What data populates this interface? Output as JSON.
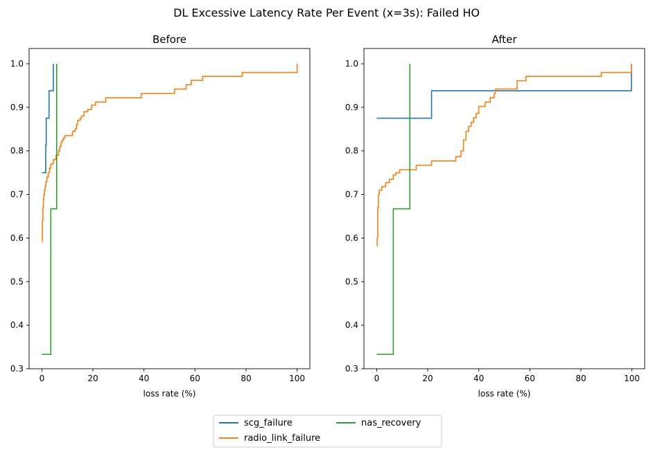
{
  "figure": {
    "suptitle": "DL Excessive Latency Rate Per Event (x=3s): Failed HO",
    "legend": {
      "placement": "bottom-center",
      "columns": 2,
      "entries": [
        {
          "name": "scg_failure",
          "color": "#1f77b4"
        },
        {
          "name": "radio_link_failure",
          "color": "#ff7f0e"
        },
        {
          "name": "nas_recovery",
          "color": "#2ca02c"
        }
      ]
    }
  },
  "chart_data": [
    {
      "type": "line",
      "step": true,
      "title": "Before",
      "xlabel": "loss rate (%)",
      "ylabel": "",
      "xlim": [
        -5,
        105
      ],
      "ylim": [
        0.3,
        1.035
      ],
      "xticks": [
        0,
        20,
        40,
        60,
        80,
        100
      ],
      "xtick_labels": [
        "0",
        "20",
        "40",
        "60",
        "80",
        "100"
      ],
      "yticks": [
        0.3,
        0.4,
        0.5,
        0.6,
        0.7,
        0.8,
        0.9,
        1.0
      ],
      "ytick_labels": [
        "0.3",
        "0.4",
        "0.5",
        "0.6",
        "0.7",
        "0.8",
        "0.9",
        "1.0"
      ],
      "grid": false,
      "series": [
        {
          "name": "scg_failure",
          "color": "#1f77b4",
          "x": [
            0,
            1.5,
            1.5,
            1.7,
            1.7,
            2.8,
            2.8,
            4.5,
            4.5
          ],
          "y": [
            0.75,
            0.75,
            0.813,
            0.813,
            0.875,
            0.875,
            0.938,
            0.938,
            1.0
          ]
        },
        {
          "name": "radio_link_failure",
          "color": "#ff7f0e",
          "x": [
            0,
            0.2,
            0.4,
            0.6,
            0.8,
            1.0,
            1.3,
            1.6,
            2.0,
            2.5,
            3.0,
            3.5,
            4.5,
            5.5,
            6.5,
            7.0,
            7.5,
            8.0,
            8.5,
            9.0,
            10.0,
            11.0,
            12.0,
            13.0,
            13.5,
            14.0,
            15.0,
            15.5,
            16.5,
            18.0,
            19.5,
            21.0,
            25.0,
            30.0,
            39.0,
            52.0,
            55.0,
            56.5,
            58.5,
            63.0,
            78.5,
            100.0
          ],
          "y": [
            0.592,
            0.64,
            0.67,
            0.69,
            0.7,
            0.71,
            0.72,
            0.73,
            0.74,
            0.75,
            0.76,
            0.77,
            0.78,
            0.79,
            0.8,
            0.81,
            0.82,
            0.825,
            0.83,
            0.835,
            0.835,
            0.835,
            0.845,
            0.85,
            0.86,
            0.87,
            0.875,
            0.88,
            0.89,
            0.895,
            0.905,
            0.912,
            0.922,
            0.922,
            0.932,
            0.942,
            0.942,
            0.952,
            0.962,
            0.971,
            0.98,
            1.0
          ]
        },
        {
          "name": "nas_recovery",
          "color": "#2ca02c",
          "x": [
            0,
            3.5,
            3.5,
            5.8,
            5.8
          ],
          "y": [
            0.333,
            0.333,
            0.667,
            0.667,
            1.0
          ]
        }
      ]
    },
    {
      "type": "line",
      "step": true,
      "title": "After",
      "xlabel": "loss rate (%)",
      "ylabel": "",
      "xlim": [
        -5,
        105
      ],
      "ylim": [
        0.3,
        1.035
      ],
      "xticks": [
        0,
        20,
        40,
        60,
        80,
        100
      ],
      "xtick_labels": [
        "0",
        "20",
        "40",
        "60",
        "80",
        "100"
      ],
      "yticks": [
        0.3,
        0.4,
        0.5,
        0.6,
        0.7,
        0.8,
        0.9,
        1.0
      ],
      "ytick_labels": [
        "0.3",
        "0.4",
        "0.5",
        "0.6",
        "0.7",
        "0.8",
        "0.9",
        "1.0"
      ],
      "grid": false,
      "series": [
        {
          "name": "scg_failure",
          "color": "#1f77b4",
          "x": [
            0,
            21.5,
            21.5,
            99.8,
            99.8
          ],
          "y": [
            0.875,
            0.875,
            0.938,
            0.938,
            1.0
          ]
        },
        {
          "name": "radio_link_failure",
          "color": "#ff7f0e",
          "x": [
            0,
            0.2,
            0.4,
            0.7,
            1.0,
            2.0,
            3.5,
            5.0,
            6.5,
            7.5,
            9.0,
            13.0,
            15.5,
            21.5,
            31.0,
            33.0,
            34.0,
            35.0,
            36.0,
            37.0,
            38.0,
            39.0,
            40.0,
            42.5,
            44.5,
            46.0,
            46.5,
            47.5,
            55.0,
            58.5,
            88.0,
            99.8
          ],
          "y": [
            0.582,
            0.6,
            0.67,
            0.7,
            0.71,
            0.718,
            0.727,
            0.735,
            0.745,
            0.75,
            0.757,
            0.757,
            0.767,
            0.777,
            0.787,
            0.8,
            0.825,
            0.845,
            0.856,
            0.866,
            0.876,
            0.886,
            0.902,
            0.912,
            0.922,
            0.932,
            0.942,
            0.942,
            0.961,
            0.971,
            0.98,
            1.0
          ]
        },
        {
          "name": "nas_recovery",
          "color": "#2ca02c",
          "x": [
            0,
            6.5,
            6.5,
            13.0,
            13.0
          ],
          "y": [
            0.333,
            0.333,
            0.667,
            0.667,
            1.0
          ]
        }
      ]
    }
  ]
}
